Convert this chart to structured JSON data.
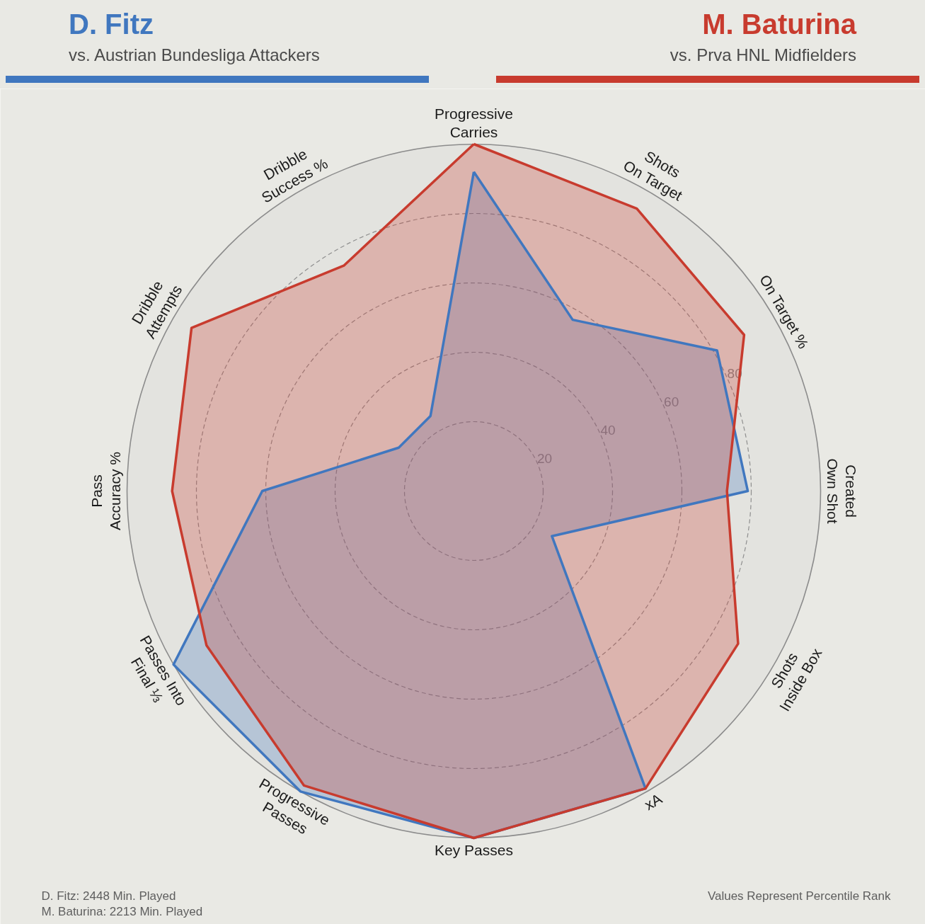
{
  "chart_data": {
    "type": "radar",
    "categories": [
      "Progressive\nCarries",
      "Shots\nOn Target",
      "On Target %",
      "Created\nOwn Shot",
      "Shots\nInside Box",
      "xA",
      "Key Passes",
      "Progressive\nPasses",
      "Passes Into\nFinal ⅓",
      "Pass\nAccuracy %",
      "Dribble\nAttempts",
      "Dribble\nSuccess %"
    ],
    "series": [
      {
        "name": "D. Fitz",
        "color": "#4077bf",
        "values": [
          92,
          57,
          81,
          79,
          26,
          99,
          100,
          100,
          100,
          61,
          25,
          25
        ]
      },
      {
        "name": "M. Baturina",
        "color": "#c83b2e",
        "values": [
          100,
          94,
          90,
          73,
          88,
          99,
          100,
          98,
          89,
          87,
          94,
          75
        ]
      }
    ],
    "ylim": [
      0,
      100
    ],
    "yticks": [
      20,
      40,
      60,
      80
    ],
    "grid": true,
    "legend": "top",
    "annotations": [
      "vs. Austrian Bundesliga Attackers",
      "vs. Prva HNL Midfielders",
      "D. Fitz: 2448 Min. Played",
      "M. Baturina: 2213 Min. Played",
      "Values Represent Percentile Rank"
    ]
  }
}
